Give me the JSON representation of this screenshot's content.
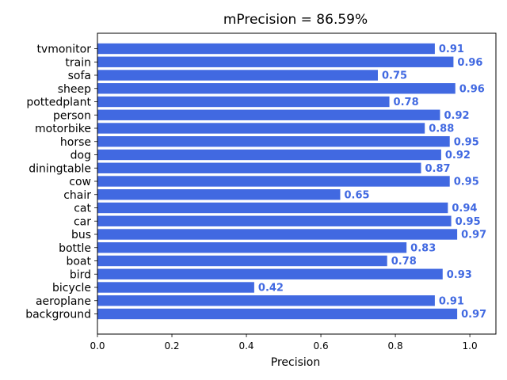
{
  "chart_data": {
    "type": "bar",
    "orientation": "horizontal",
    "title": "mPrecision = 86.59%",
    "xlabel": "Precision",
    "ylabel": "",
    "xlim": [
      0,
      1.07
    ],
    "xticks": [
      0.0,
      0.2,
      0.4,
      0.6,
      0.8,
      1.0
    ],
    "xtick_labels": [
      "0.0",
      "0.2",
      "0.4",
      "0.6",
      "0.8",
      "1.0"
    ],
    "grid": false,
    "bar_color": "#4169e1",
    "label_color": "#4169e1",
    "categories": [
      "background",
      "aeroplane",
      "bicycle",
      "bird",
      "boat",
      "bottle",
      "bus",
      "car",
      "cat",
      "chair",
      "cow",
      "diningtable",
      "dog",
      "horse",
      "motorbike",
      "person",
      "pottedplant",
      "sheep",
      "sofa",
      "train",
      "tvmonitor"
    ],
    "values": [
      0.966,
      0.906,
      0.421,
      0.927,
      0.778,
      0.83,
      0.966,
      0.95,
      0.941,
      0.652,
      0.946,
      0.869,
      0.923,
      0.946,
      0.879,
      0.92,
      0.784,
      0.961,
      0.753,
      0.956,
      0.906
    ],
    "value_labels": [
      "0.97",
      "0.91",
      "0.42",
      "0.93",
      "0.78",
      "0.83",
      "0.97",
      "0.95",
      "0.94",
      "0.65",
      "0.95",
      "0.87",
      "0.92",
      "0.95",
      "0.88",
      "0.92",
      "0.78",
      "0.96",
      "0.75",
      "0.96",
      "0.91"
    ]
  }
}
